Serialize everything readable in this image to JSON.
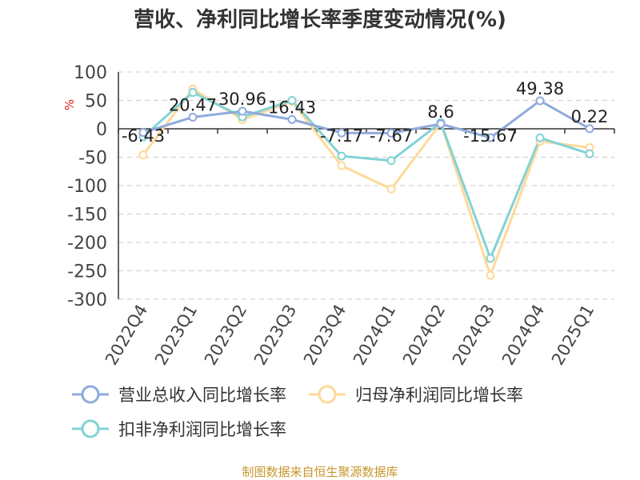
{
  "title": "营收、净利同比增长率季度变动情况(%)",
  "footer": "制图数据来自恒生聚源数据库",
  "colors": {
    "revenue": "#8faadc",
    "net_profit": "#ffd999",
    "deducted": "#83d2d6",
    "axis_unit": "#dd2222",
    "grid": "#cccccc",
    "footer": "#c8962e"
  },
  "chart_data": {
    "type": "line",
    "ylabel": "%",
    "ylim": [
      -300,
      100
    ],
    "yticks": [
      100,
      50,
      0,
      -50,
      -100,
      -150,
      -200,
      -250,
      -300
    ],
    "categories": [
      "2022Q4",
      "2023Q1",
      "2023Q2",
      "2023Q3",
      "2023Q4",
      "2024Q1",
      "2024Q2",
      "2024Q3",
      "2024Q4",
      "2025Q1"
    ],
    "grid": "horizontal dashed",
    "legend_position": "bottom",
    "series": [
      {
        "name": "营业总收入同比增长率",
        "color_key": "revenue",
        "values": [
          -6.43,
          20.47,
          30.96,
          16.43,
          -7.17,
          -7.67,
          8.6,
          -15.67,
          49.38,
          0.22
        ],
        "labels": [
          "-6.43",
          "20.47",
          "30.96",
          "16.43",
          "-7.17",
          "-7.67",
          "8.6",
          "-15.67",
          "49.38",
          "0.22"
        ]
      },
      {
        "name": "归母净利润同比增长率",
        "color_key": "net_profit",
        "values": [
          -46,
          70,
          16,
          48,
          -65,
          -106,
          10,
          -258,
          -22,
          -33
        ]
      },
      {
        "name": "扣非净利润同比增长率",
        "color_key": "deducted",
        "values": [
          -14,
          64,
          21,
          50,
          -48,
          -56,
          11,
          -228,
          -16,
          -44
        ]
      }
    ]
  }
}
